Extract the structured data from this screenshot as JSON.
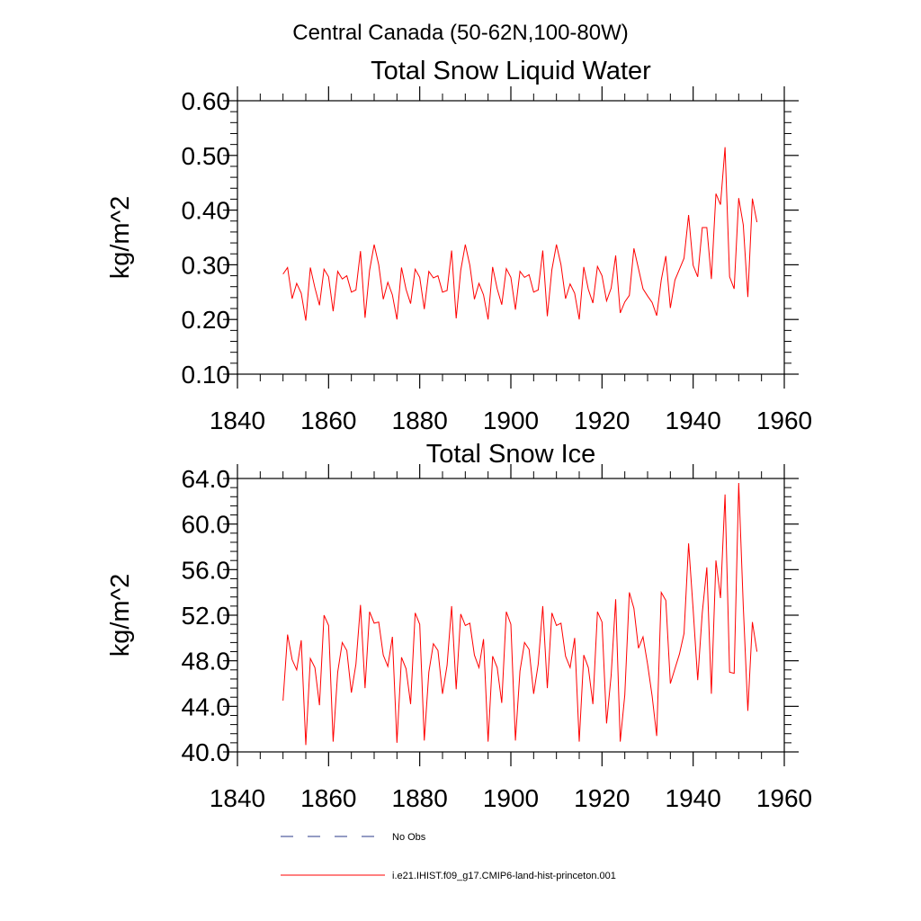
{
  "figure": {
    "suptitle": "Central Canada (50-62N,100-80W)"
  },
  "legend": {
    "items": [
      {
        "label": "No Obs",
        "style": "dashed",
        "color": "#2a3a8a"
      },
      {
        "label": "i.e21.IHIST.f09_g17.CMIP6-land-hist-princeton.001",
        "style": "solid",
        "color": "#ff0000"
      }
    ]
  },
  "chart_data": [
    {
      "type": "line",
      "title": "Total Snow Liquid Water",
      "ylabel": "kg/m^2",
      "xlim": [
        1840,
        1960
      ],
      "ylim": [
        0.1,
        0.6
      ],
      "xticks": [
        1840,
        1860,
        1880,
        1900,
        1920,
        1940,
        1960
      ],
      "xtick_labels": [
        "1840",
        "1860",
        "1880",
        "1900",
        "1920",
        "1940",
        "1960"
      ],
      "yticks": [
        0.1,
        0.2,
        0.3,
        0.4,
        0.5,
        0.6
      ],
      "ytick_labels": [
        "0.10",
        "0.20",
        "0.30",
        "0.40",
        "0.50",
        "0.60"
      ],
      "series": [
        {
          "color": "#ff0000",
          "x": [
            1850,
            1851,
            1852,
            1853,
            1854,
            1855,
            1856,
            1857,
            1858,
            1859,
            1860,
            1861,
            1862,
            1863,
            1864,
            1865,
            1866,
            1867,
            1868,
            1869,
            1870,
            1871,
            1872,
            1873,
            1874,
            1875,
            1876,
            1877,
            1878,
            1879,
            1880,
            1881,
            1882,
            1883,
            1884,
            1885,
            1886,
            1887,
            1888,
            1889,
            1890,
            1891,
            1892,
            1893,
            1894,
            1895,
            1896,
            1897,
            1898,
            1899,
            1900,
            1901,
            1902,
            1903,
            1904,
            1905,
            1906,
            1907,
            1908,
            1909,
            1910,
            1911,
            1912,
            1913,
            1914,
            1915,
            1916,
            1917,
            1918,
            1919,
            1920,
            1921,
            1922,
            1923,
            1924,
            1925,
            1926,
            1927,
            1928,
            1929,
            1930,
            1931,
            1932,
            1933,
            1934,
            1935,
            1936,
            1937,
            1938,
            1939,
            1940,
            1941,
            1942,
            1943,
            1944,
            1945,
            1946,
            1947,
            1948,
            1949,
            1950,
            1951,
            1952,
            1953,
            1954
          ],
          "y": [
            0.283,
            0.295,
            0.238,
            0.266,
            0.248,
            0.198,
            0.295,
            0.258,
            0.226,
            0.292,
            0.278,
            0.215,
            0.288,
            0.274,
            0.28,
            0.25,
            0.254,
            0.325,
            0.203,
            0.29,
            0.337,
            0.3,
            0.237,
            0.268,
            0.245,
            0.2,
            0.295,
            0.255,
            0.229,
            0.292,
            0.277,
            0.219,
            0.288,
            0.276,
            0.28,
            0.25,
            0.253,
            0.326,
            0.202,
            0.29,
            0.337,
            0.299,
            0.237,
            0.266,
            0.245,
            0.2,
            0.296,
            0.256,
            0.227,
            0.293,
            0.277,
            0.218,
            0.288,
            0.277,
            0.282,
            0.25,
            0.254,
            0.326,
            0.206,
            0.291,
            0.337,
            0.3,
            0.238,
            0.265,
            0.248,
            0.2,
            0.296,
            0.255,
            0.23,
            0.297,
            0.28,
            0.234,
            0.257,
            0.317,
            0.212,
            0.232,
            0.244,
            0.33,
            0.293,
            0.256,
            0.243,
            0.231,
            0.207,
            0.272,
            0.316,
            0.221,
            0.272,
            0.292,
            0.312,
            0.391,
            0.299,
            0.278,
            0.368,
            0.368,
            0.274,
            0.43,
            0.41,
            0.515,
            0.278,
            0.256,
            0.422,
            0.373,
            0.241,
            0.421,
            0.378
          ]
        }
      ]
    },
    {
      "type": "line",
      "title": "Total Snow Ice",
      "ylabel": "kg/m^2",
      "xlim": [
        1840,
        1960
      ],
      "ylim": [
        40,
        64
      ],
      "xticks": [
        1840,
        1860,
        1880,
        1900,
        1920,
        1940,
        1960
      ],
      "xtick_labels": [
        "1840",
        "1860",
        "1880",
        "1900",
        "1920",
        "1940",
        "1960"
      ],
      "yticks": [
        40,
        44,
        48,
        52,
        56,
        60,
        64
      ],
      "ytick_labels": [
        "40.0",
        "44.0",
        "48.0",
        "52.0",
        "56.0",
        "60.0",
        "64.0"
      ],
      "series": [
        {
          "color": "#ff0000",
          "x": [
            1850,
            1851,
            1852,
            1853,
            1854,
            1855,
            1856,
            1857,
            1858,
            1859,
            1860,
            1861,
            1862,
            1863,
            1864,
            1865,
            1866,
            1867,
            1868,
            1869,
            1870,
            1871,
            1872,
            1873,
            1874,
            1875,
            1876,
            1877,
            1878,
            1879,
            1880,
            1881,
            1882,
            1883,
            1884,
            1885,
            1886,
            1887,
            1888,
            1889,
            1890,
            1891,
            1892,
            1893,
            1894,
            1895,
            1896,
            1897,
            1898,
            1899,
            1900,
            1901,
            1902,
            1903,
            1904,
            1905,
            1906,
            1907,
            1908,
            1909,
            1910,
            1911,
            1912,
            1913,
            1914,
            1915,
            1916,
            1917,
            1918,
            1919,
            1920,
            1921,
            1922,
            1923,
            1924,
            1925,
            1926,
            1927,
            1928,
            1929,
            1930,
            1931,
            1932,
            1933,
            1934,
            1935,
            1936,
            1937,
            1938,
            1939,
            1940,
            1941,
            1942,
            1943,
            1944,
            1945,
            1946,
            1947,
            1948,
            1949,
            1950,
            1951,
            1952,
            1953,
            1954
          ],
          "y": [
            44.5,
            50.3,
            48.1,
            47.2,
            49.8,
            40.6,
            48.2,
            47.4,
            44.1,
            52.0,
            51.1,
            40.9,
            47.0,
            49.6,
            48.9,
            45.2,
            47.7,
            52.9,
            45.6,
            52.3,
            51.3,
            51.4,
            48.5,
            47.5,
            50.1,
            40.8,
            48.3,
            47.3,
            44.2,
            52.2,
            51.2,
            41.0,
            47.0,
            49.5,
            48.9,
            45.1,
            47.6,
            52.8,
            45.5,
            52.1,
            51.1,
            51.3,
            48.5,
            47.4,
            49.9,
            40.9,
            48.4,
            47.4,
            44.3,
            52.3,
            51.2,
            41.0,
            47.1,
            49.6,
            49.0,
            45.1,
            47.7,
            52.8,
            45.6,
            52.2,
            51.1,
            51.3,
            48.4,
            47.4,
            50.0,
            40.9,
            48.5,
            47.4,
            44.2,
            52.3,
            51.4,
            42.5,
            46.7,
            53.4,
            40.9,
            45.0,
            54.0,
            52.6,
            49.1,
            50.1,
            47.7,
            44.9,
            41.4,
            54.0,
            53.3,
            46.0,
            47.3,
            48.6,
            50.4,
            58.3,
            52.5,
            46.3,
            52.2,
            56.2,
            45.1,
            56.8,
            53.5,
            62.6,
            47.0,
            46.9,
            63.6,
            52.8,
            43.6,
            51.4,
            48.8
          ]
        }
      ]
    }
  ]
}
